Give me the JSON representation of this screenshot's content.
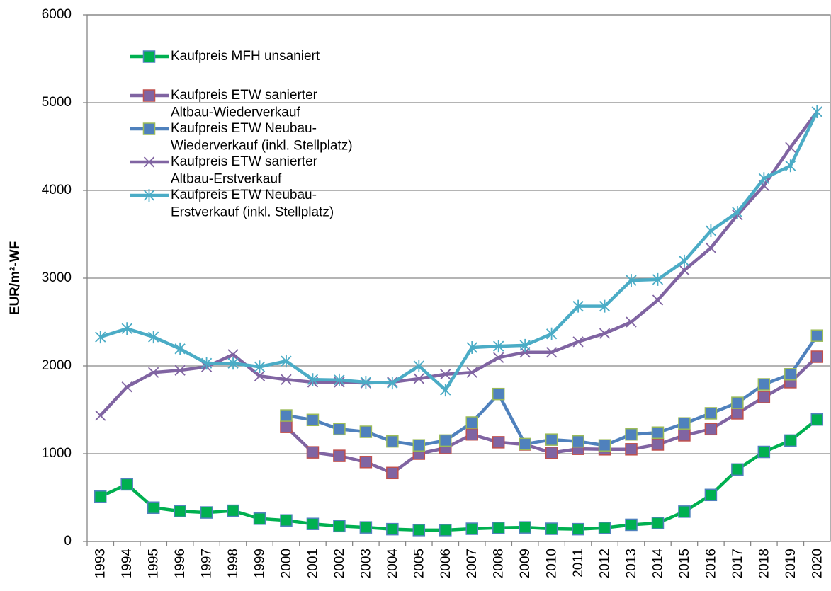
{
  "chart_data": {
    "type": "line",
    "y_label": "EUR/m²-WF",
    "categories": [
      "1993",
      "1994",
      "1995",
      "1996",
      "1997",
      "1998",
      "1999",
      "2000",
      "2001",
      "2002",
      "2003",
      "2004",
      "2005",
      "2006",
      "2007",
      "2008",
      "2009",
      "2010",
      "2011",
      "2012",
      "2013",
      "2014",
      "2015",
      "2016",
      "2017",
      "2018",
      "2019",
      "2020"
    ],
    "ylim": [
      0,
      6000
    ],
    "yticks": [
      0,
      1000,
      2000,
      3000,
      4000,
      5000,
      6000
    ],
    "grid": true,
    "series": [
      {
        "name": [
          "Kaufpreis MFH unsaniert"
        ],
        "color": "#00b050",
        "marker": "square",
        "marker_fill": "#00b050",
        "marker_edge": "#4f81bd",
        "values": [
          510,
          650,
          385,
          345,
          330,
          350,
          260,
          240,
          200,
          175,
          160,
          140,
          130,
          130,
          145,
          155,
          160,
          145,
          140,
          155,
          190,
          210,
          340,
          530,
          820,
          1020,
          1150,
          1390
        ]
      },
      {
        "name": [
          "Kaufpreis ETW sanierter",
          "Altbau-Wiederverkauf"
        ],
        "color": "#8064a2",
        "marker": "square",
        "marker_fill": "#8064a2",
        "marker_edge": "#c0504d",
        "values": [
          null,
          null,
          null,
          null,
          null,
          null,
          null,
          1305,
          1015,
          975,
          905,
          780,
          1000,
          1065,
          1220,
          1130,
          1105,
          1010,
          1055,
          1050,
          1050,
          1105,
          1210,
          1280,
          1460,
          1645,
          1815,
          2105
        ]
      },
      {
        "name": [
          "Kaufpreis ETW Neubau-",
          "Wiederverkauf (inkl. Stellplatz)"
        ],
        "color": "#4f81bd",
        "marker": "square",
        "marker_fill": "#4f81bd",
        "marker_edge": "#9bbb59",
        "values": [
          null,
          null,
          null,
          null,
          null,
          null,
          null,
          1435,
          1385,
          1280,
          1250,
          1140,
          1095,
          1150,
          1355,
          1680,
          1110,
          1160,
          1140,
          1095,
          1220,
          1240,
          1345,
          1460,
          1580,
          1790,
          1905,
          2345
        ]
      },
      {
        "name": [
          "Kaufpreis ETW sanierter",
          "Altbau-Erstverkauf"
        ],
        "color": "#8064a2",
        "marker": "x",
        "marker_fill": "#8064a2",
        "marker_edge": "#8064a2",
        "values": [
          1435,
          1760,
          1925,
          1950,
          1990,
          2130,
          1885,
          1845,
          1815,
          1815,
          1805,
          1815,
          1855,
          1905,
          1925,
          2095,
          2155,
          2155,
          2275,
          2370,
          2500,
          2750,
          3090,
          3345,
          3720,
          4055,
          4490,
          4895
        ]
      },
      {
        "name": [
          "Kaufpreis ETW Neubau-",
          "Erstverkauf (inkl. Stellplatz)"
        ],
        "color": "#4bacc6",
        "marker": "asterisk",
        "marker_fill": "#4bacc6",
        "marker_edge": "#4bacc6",
        "values": [
          2330,
          2425,
          2330,
          2195,
          2030,
          2030,
          1990,
          2055,
          1845,
          1840,
          1815,
          1805,
          2000,
          1725,
          2210,
          2225,
          2235,
          2365,
          2680,
          2680,
          2975,
          2985,
          3195,
          3540,
          3750,
          4135,
          4280,
          4895
        ]
      }
    ]
  }
}
